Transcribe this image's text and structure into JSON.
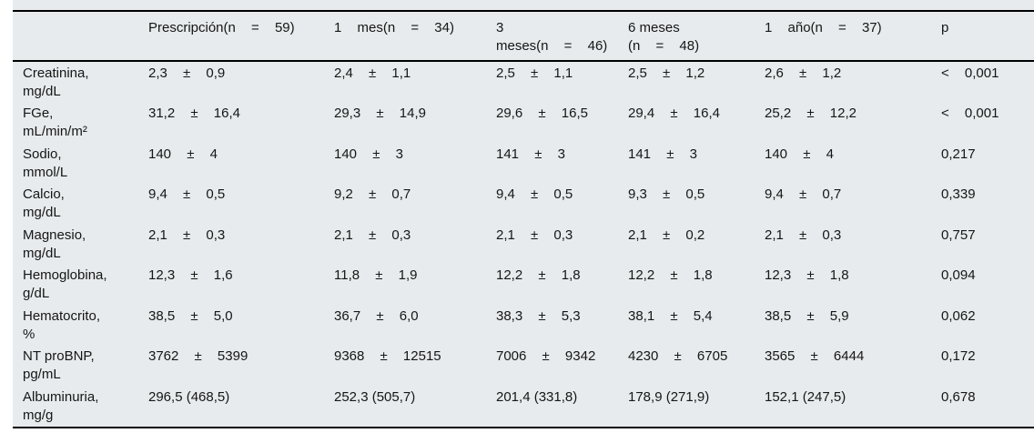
{
  "table": {
    "background_color": "#e7ebed",
    "rule_color": "#000000",
    "text_color": "#161616",
    "header": [
      {
        "lines": [
          [
            ""
          ]
        ]
      },
      {
        "lines": [
          [
            "Prescripción(n",
            "=",
            "59)"
          ]
        ]
      },
      {
        "lines": [
          [
            "1 mes(n",
            "=",
            "34)"
          ]
        ]
      },
      {
        "lines": [
          [
            "3"
          ],
          [
            "meses(n",
            "=",
            "46)"
          ]
        ]
      },
      {
        "lines": [
          [
            "6 meses"
          ],
          [
            "(n",
            "=",
            "48)"
          ]
        ]
      },
      {
        "lines": [
          [
            "1 año(n",
            "=",
            "37)"
          ]
        ]
      },
      {
        "lines": [
          [
            "p"
          ]
        ]
      }
    ],
    "rows": [
      {
        "label": [
          "Creatinina,",
          "mg/dL"
        ],
        "values": [
          [
            "2,3",
            "±",
            "0,9"
          ],
          [
            "2,4",
            "±",
            "1,1"
          ],
          [
            "2,5",
            "±",
            "1,1"
          ],
          [
            "2,5",
            "±",
            "1,2"
          ],
          [
            "2,6",
            "±",
            "1,2"
          ],
          [
            "<",
            "0,001"
          ]
        ]
      },
      {
        "label": [
          "FGe,",
          "mL/min/m²"
        ],
        "values": [
          [
            "31,2",
            "±",
            "16,4"
          ],
          [
            "29,3",
            "±",
            "14,9"
          ],
          [
            "29,6",
            "±",
            "16,5"
          ],
          [
            "29,4",
            "±",
            "16,4"
          ],
          [
            "25,2",
            "±",
            "12,2"
          ],
          [
            "<",
            "0,001"
          ]
        ]
      },
      {
        "label": [
          "Sodio,",
          "mmol/L"
        ],
        "values": [
          [
            "140",
            "±",
            "4"
          ],
          [
            "140",
            "±",
            "3"
          ],
          [
            "141",
            "±",
            "3"
          ],
          [
            "141",
            "±",
            "3"
          ],
          [
            "140",
            "±",
            "4"
          ],
          [
            "0,217"
          ]
        ]
      },
      {
        "label": [
          "Calcio,",
          "mg/dL"
        ],
        "values": [
          [
            "9,4",
            "±",
            "0,5"
          ],
          [
            "9,2",
            "±",
            "0,7"
          ],
          [
            "9,4",
            "±",
            "0,5"
          ],
          [
            "9,3",
            "±",
            "0,5"
          ],
          [
            "9,4",
            "±",
            "0,7"
          ],
          [
            "0,339"
          ]
        ]
      },
      {
        "label": [
          "Magnesio,",
          "mg/dL"
        ],
        "values": [
          [
            "2,1",
            "±",
            "0,3"
          ],
          [
            "2,1",
            "±",
            "0,3"
          ],
          [
            "2,1",
            "±",
            "0,3"
          ],
          [
            "2,1",
            "±",
            "0,2"
          ],
          [
            "2,1",
            "±",
            "0,3"
          ],
          [
            "0,757"
          ]
        ]
      },
      {
        "label": [
          "Hemoglobina,",
          "g/dL"
        ],
        "values": [
          [
            "12,3",
            "±",
            "1,6"
          ],
          [
            "11,8",
            "±",
            "1,9"
          ],
          [
            "12,2",
            "±",
            "1,8"
          ],
          [
            "12,2",
            "±",
            "1,8"
          ],
          [
            "12,3",
            "±",
            "1,8"
          ],
          [
            "0,094"
          ]
        ]
      },
      {
        "label": [
          "Hematocrito,",
          "%"
        ],
        "values": [
          [
            "38,5",
            "±",
            "5,0"
          ],
          [
            "36,7",
            "±",
            "6,0"
          ],
          [
            "38,3",
            "±",
            "5,3"
          ],
          [
            "38,1",
            "±",
            "5,4"
          ],
          [
            "38,5",
            "±",
            "5,9"
          ],
          [
            "0,062"
          ]
        ]
      },
      {
        "label": [
          "NT proBNP,",
          "pg/mL"
        ],
        "values": [
          [
            "3762",
            "±",
            "5399"
          ],
          [
            "9368",
            "±",
            "12515"
          ],
          [
            "7006",
            "±",
            "9342"
          ],
          [
            "4230",
            "±",
            "6705"
          ],
          [
            "3565",
            "±",
            "6444"
          ],
          [
            "0,172"
          ]
        ]
      },
      {
        "label": [
          "Albuminuria,",
          "mg/g"
        ],
        "values": [
          [
            "296,5 (468,5)"
          ],
          [
            "252,3 (505,7)"
          ],
          [
            "201,4 (331,8)"
          ],
          [
            "178,9 (271,9)"
          ],
          [
            "152,1 (247,5)"
          ],
          [
            "0,678"
          ]
        ]
      }
    ]
  }
}
